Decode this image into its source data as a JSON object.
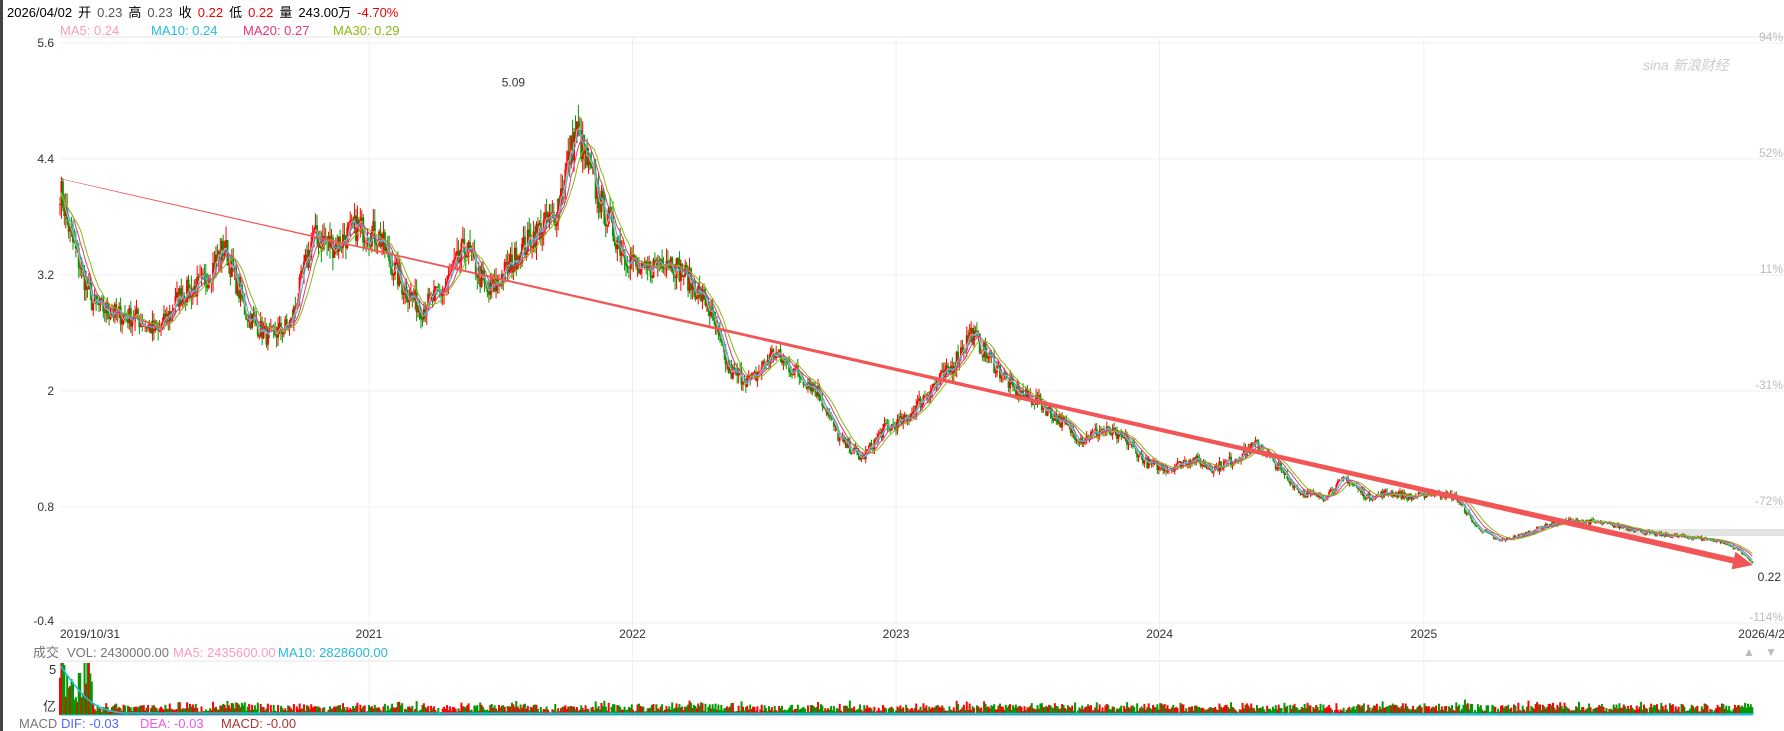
{
  "header": {
    "date": "2026/04/02",
    "open_label": "开",
    "open": "0.23",
    "high_label": "高",
    "high": "0.23",
    "close_label": "收",
    "close": "0.22",
    "low_label": "低",
    "low": "0.22",
    "volume_label": "量",
    "volume": "243.00万",
    "change": "-4.70%"
  },
  "ma": {
    "ma5": "MA5: 0.24",
    "ma10": "MA10: 0.24",
    "ma20": "MA20: 0.27",
    "ma30": "MA30: 0.29"
  },
  "colors": {
    "up": "#ff0000",
    "down": "#009900",
    "ma5": "#ff99bb",
    "ma10": "#22bbdd",
    "ma20": "#ee3377",
    "ma30": "#88bb11",
    "trend": "#f25555"
  },
  "watermark": "sina 新浪财经",
  "volume_header": {
    "label": "成交",
    "vol": "VOL: 2430000.00",
    "ma5": "MA5: 2435600.00",
    "ma10": "MA10: 2828600.00",
    "axis_top": "5",
    "axis_unit": "亿"
  },
  "macd_header": {
    "label": "MACD",
    "dif": "DIF: -0.03",
    "dea": "DEA: -0.03",
    "macd": "MACD: -0.00"
  },
  "chart_data": {
    "type": "candlestick",
    "y_ticks": [
      "5.6",
      "4.4",
      "3.2",
      "2",
      "0.8",
      "-0.4"
    ],
    "ylim": [
      -0.4,
      5.6
    ],
    "y_right_ticks": [
      "94%",
      "52%",
      "11%",
      "-31%",
      "-72%",
      "-114%"
    ],
    "x_ticks": [
      "2019/10/31",
      "2021",
      "2022",
      "2023",
      "2024",
      "2025",
      "2026/4/2"
    ],
    "x_tick_dates": [
      "2019-10-31",
      "2021-01-01",
      "2022-01-01",
      "2023-01-01",
      "2024-01-01",
      "2025-01-01",
      "2026-04-02"
    ],
    "grid": true,
    "max_label": "5.09",
    "last_label": "0.22",
    "approx_monthly_close": {
      "dates": [
        "2019-11",
        "2019-12",
        "2020-01",
        "2020-02",
        "2020-03",
        "2020-04",
        "2020-05",
        "2020-06",
        "2020-07",
        "2020-08",
        "2020-09",
        "2020-10",
        "2020-11",
        "2020-12",
        "2021-01",
        "2021-02",
        "2021-03",
        "2021-04",
        "2021-05",
        "2021-06",
        "2021-07",
        "2021-08",
        "2021-09",
        "2021-10",
        "2021-11",
        "2021-12",
        "2022-01",
        "2022-02",
        "2022-03",
        "2022-04",
        "2022-05",
        "2022-06",
        "2022-07",
        "2022-08",
        "2022-09",
        "2022-10",
        "2022-11",
        "2022-12",
        "2023-01",
        "2023-02",
        "2023-03",
        "2023-04",
        "2023-05",
        "2023-06",
        "2023-07",
        "2023-08",
        "2023-09",
        "2023-10",
        "2023-11",
        "2023-12",
        "2024-01",
        "2024-02",
        "2024-03",
        "2024-04",
        "2024-05",
        "2024-06",
        "2024-07",
        "2024-08",
        "2024-09",
        "2024-10",
        "2024-11",
        "2024-12",
        "2025-01",
        "2025-02",
        "2025-03",
        "2025-04",
        "2025-05",
        "2025-06",
        "2025-07",
        "2025-08",
        "2025-09",
        "2025-10",
        "2025-11",
        "2025-12",
        "2026-01",
        "2026-02",
        "2026-03",
        "2026-04"
      ],
      "values": [
        3.6,
        2.9,
        2.8,
        2.75,
        2.6,
        3.0,
        3.1,
        3.5,
        2.8,
        2.55,
        2.7,
        3.6,
        3.5,
        3.7,
        3.6,
        3.1,
        2.85,
        3.05,
        3.5,
        3.0,
        3.3,
        3.6,
        3.8,
        4.7,
        4.0,
        3.5,
        3.2,
        3.4,
        3.2,
        2.9,
        2.2,
        2.1,
        2.4,
        2.2,
        2.0,
        1.5,
        1.3,
        1.6,
        1.7,
        2.0,
        2.2,
        2.6,
        2.3,
        2.0,
        1.9,
        1.7,
        1.5,
        1.6,
        1.5,
        1.25,
        1.2,
        1.3,
        1.2,
        1.3,
        1.45,
        1.2,
        0.95,
        0.9,
        1.1,
        0.9,
        0.95,
        0.9,
        0.95,
        0.9,
        0.6,
        0.45,
        0.5,
        0.6,
        0.65,
        0.65,
        0.62,
        0.58,
        0.52,
        0.5,
        0.48,
        0.45,
        0.35,
        0.22
      ]
    },
    "trendline": {
      "from": [
        "2019-10-31",
        4.2
      ],
      "to": [
        "2026-04-02",
        0.2
      ]
    }
  }
}
